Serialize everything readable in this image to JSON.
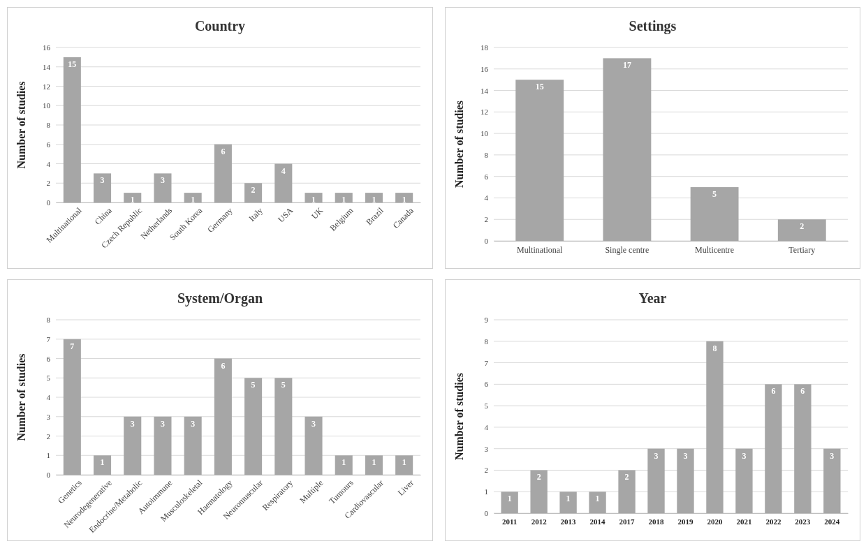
{
  "chart_data": [
    {
      "type": "bar",
      "title": "Country",
      "ylabel": "Number of studies",
      "categories": [
        "Multinational",
        "China",
        "Czech Republic",
        "Netherlands",
        "South Korea",
        "Germany",
        "Italy",
        "USA",
        "UK",
        "Belgium",
        "Brazil",
        "Canada"
      ],
      "values": [
        15,
        3,
        1,
        3,
        1,
        6,
        2,
        4,
        1,
        1,
        1,
        1
      ],
      "color": "#a6a6a6",
      "ylim": [
        0,
        16
      ],
      "yticks": [
        0,
        2,
        4,
        6,
        8,
        10,
        12,
        14,
        16
      ],
      "grid": "y",
      "data_labels": true
    },
    {
      "type": "bar",
      "title": "Settings",
      "ylabel": "Number of studies",
      "categories": [
        "Multinational",
        "Single centre",
        "Multicentre",
        "Tertiary"
      ],
      "values": [
        15,
        17,
        5,
        2
      ],
      "color": "#a6a6a6",
      "ylim": [
        0,
        18
      ],
      "yticks": [
        0,
        2,
        4,
        6,
        8,
        10,
        12,
        14,
        16,
        18
      ],
      "grid": "y",
      "data_labels": true
    },
    {
      "type": "bar",
      "title": "System/Organ",
      "ylabel": "Number of studies",
      "categories": [
        "Genetics",
        "Neurodegenerative",
        "Endocrine/Metabolic",
        "Autoimmune",
        "Musculoskeletal",
        "Haematology",
        "Neuromuscular",
        "Respiratory",
        "Multiple",
        "Tumours",
        "Cardiovascular",
        "Liver"
      ],
      "values": [
        7,
        1,
        3,
        3,
        3,
        6,
        5,
        5,
        3,
        1,
        1,
        1
      ],
      "color": "#a6a6a6",
      "ylim": [
        0,
        8
      ],
      "yticks": [
        0,
        1,
        2,
        3,
        4,
        5,
        6,
        7,
        8
      ],
      "grid": "y",
      "data_labels": true
    },
    {
      "type": "bar",
      "title": "Year",
      "ylabel": "Number of studies",
      "categories": [
        "2011",
        "2012",
        "2013",
        "2014",
        "2017",
        "2018",
        "2019",
        "2020",
        "2021",
        "2022",
        "2023",
        "2024"
      ],
      "values": [
        1,
        2,
        1,
        1,
        2,
        3,
        3,
        8,
        3,
        6,
        6,
        3
      ],
      "color": "#a6a6a6",
      "ylim": [
        0,
        9
      ],
      "yticks": [
        0,
        1,
        2,
        3,
        4,
        5,
        6,
        7,
        8,
        9
      ],
      "grid": "y",
      "data_labels": true
    }
  ]
}
